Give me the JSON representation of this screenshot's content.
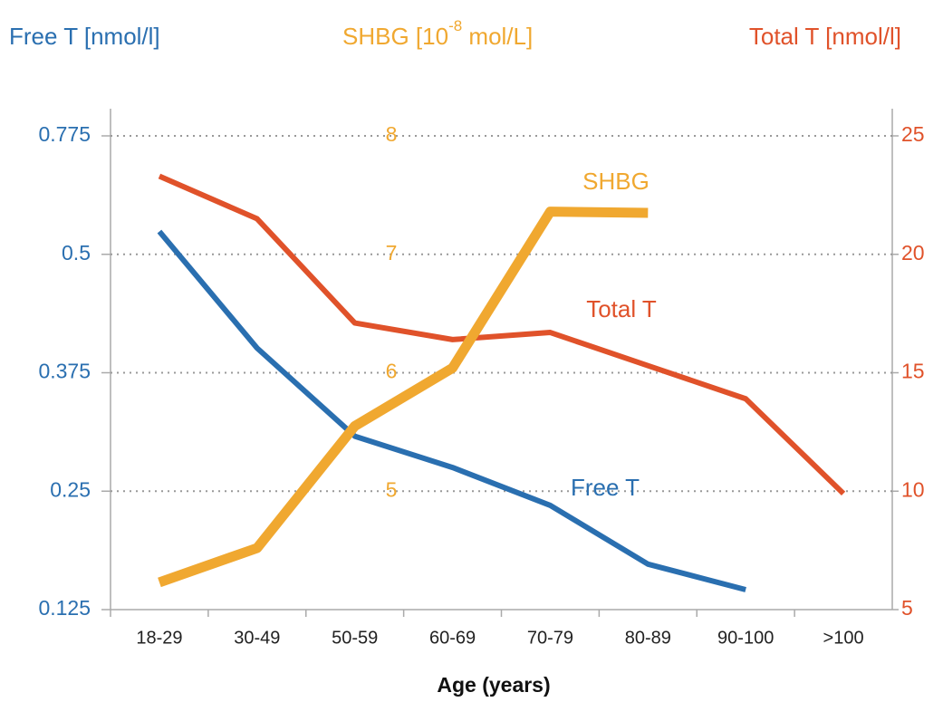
{
  "chart_data": {
    "type": "line",
    "categories": [
      "18-29",
      "30-49",
      "50-59",
      "60-69",
      "70-79",
      "80-89",
      "90-100",
      ">100"
    ],
    "series": [
      {
        "name": "Free T",
        "color": "#2a6fb0",
        "axis": "y",
        "values": [
          0.553,
          0.401,
          0.308,
          0.275,
          0.235,
          0.173,
          0.146,
          null
        ]
      },
      {
        "name": "Total T",
        "color": "#e0522a",
        "axis": "y2",
        "values": [
          23.3,
          21.5,
          17.1,
          16.4,
          16.7,
          15.3,
          13.9,
          9.9
        ]
      },
      {
        "name": "SHBG",
        "color": "#f0a830",
        "axis": "y3",
        "values": [
          4.23,
          4.52,
          5.55,
          6.04,
          7.36,
          7.35,
          null,
          null
        ]
      }
    ],
    "y_label": "Free T [nmol/l]",
    "y2_label": "Total T [nmol/l]",
    "y3_label": {
      "text": "SHBG [10",
      "sup": "-8",
      "after": " mol/L]"
    },
    "x_label": "Age  (years)",
    "ylim": [
      0.125,
      0.775
    ],
    "yticks": [
      0.125,
      0.25,
      0.375,
      0.5,
      0.775
    ],
    "y2lim": [
      5,
      25
    ],
    "y2ticks": [
      5,
      10,
      15,
      20,
      25
    ],
    "y3lim": [
      4,
      8
    ],
    "y3ticks": [
      5,
      6,
      7,
      8
    ],
    "grid": true
  }
}
